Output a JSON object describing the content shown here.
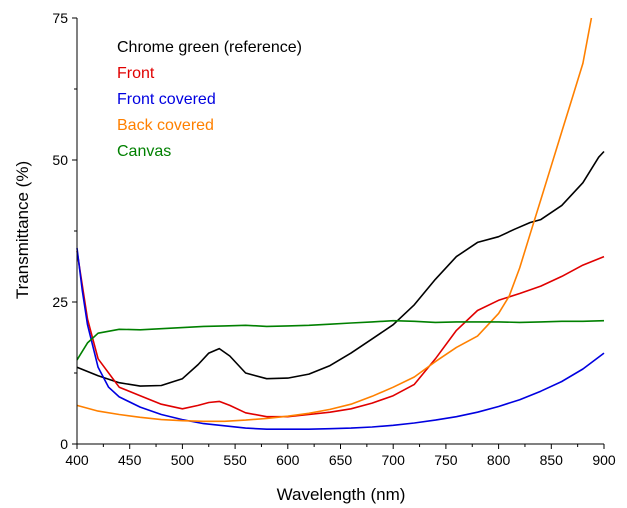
{
  "chart_data": {
    "type": "line",
    "title": "",
    "xlabel": "Wavelength (nm)",
    "ylabel": "Transmittance (%)",
    "xlim": [
      400,
      900
    ],
    "ylim": [
      0,
      75
    ],
    "xticks": [
      400,
      450,
      500,
      550,
      600,
      650,
      700,
      750,
      800,
      850,
      900
    ],
    "yticks": [
      0,
      25,
      50,
      75
    ],
    "grid": false,
    "legend_position": "top-left",
    "series": [
      {
        "name": "Chrome green (reference)",
        "color": "#000000",
        "x": [
          400,
          420,
          440,
          460,
          480,
          500,
          515,
          525,
          535,
          545,
          560,
          580,
          600,
          620,
          640,
          660,
          680,
          700,
          720,
          740,
          760,
          780,
          800,
          815,
          830,
          840,
          860,
          880,
          895,
          900
        ],
        "y": [
          13.5,
          12,
          10.8,
          10.2,
          10.3,
          11.5,
          14,
          16,
          16.8,
          15.5,
          12.5,
          11.5,
          11.6,
          12.3,
          13.8,
          16,
          18.5,
          21,
          24.5,
          29,
          33,
          35.5,
          36.5,
          37.8,
          39,
          39.5,
          42,
          46,
          50.5,
          51.5
        ]
      },
      {
        "name": "Front",
        "color": "#e00000",
        "x": [
          400,
          410,
          420,
          440,
          460,
          480,
          500,
          515,
          525,
          535,
          545,
          560,
          580,
          600,
          620,
          640,
          660,
          680,
          700,
          720,
          740,
          760,
          780,
          800,
          820,
          840,
          860,
          880,
          900
        ],
        "y": [
          34,
          22,
          15,
          10,
          8.5,
          7,
          6.2,
          6.8,
          7.3,
          7.5,
          6.8,
          5.5,
          4.8,
          4.8,
          5.2,
          5.6,
          6.2,
          7.2,
          8.5,
          10.5,
          15,
          20,
          23.5,
          25.3,
          26.5,
          27.8,
          29.5,
          31.5,
          33
        ]
      },
      {
        "name": "Front covered",
        "color": "#0000e0",
        "x": [
          400,
          405,
          410,
          420,
          430,
          440,
          460,
          480,
          500,
          520,
          540,
          560,
          580,
          600,
          620,
          640,
          660,
          680,
          700,
          720,
          740,
          760,
          780,
          800,
          820,
          840,
          860,
          880,
          900
        ],
        "y": [
          34.5,
          27,
          21,
          13.5,
          10,
          8.3,
          6.5,
          5.2,
          4.3,
          3.6,
          3.2,
          2.8,
          2.6,
          2.6,
          2.6,
          2.7,
          2.8,
          3,
          3.3,
          3.7,
          4.2,
          4.8,
          5.6,
          6.6,
          7.8,
          9.3,
          11,
          13.2,
          16
        ]
      },
      {
        "name": "Back covered",
        "color": "#ff8000",
        "x": [
          400,
          420,
          440,
          460,
          480,
          500,
          520,
          540,
          560,
          580,
          600,
          620,
          640,
          660,
          680,
          700,
          720,
          740,
          760,
          780,
          800,
          810,
          820,
          830,
          840,
          850,
          860,
          870,
          880,
          888
        ],
        "y": [
          6.8,
          5.8,
          5.2,
          4.7,
          4.3,
          4.1,
          4,
          4,
          4.2,
          4.5,
          4.9,
          5.4,
          6.1,
          7,
          8.4,
          10,
          11.8,
          14.5,
          17,
          19,
          23,
          26,
          31,
          37,
          43,
          49,
          55,
          61,
          67,
          75
        ]
      },
      {
        "name": "Canvas",
        "color": "#008000",
        "x": [
          400,
          410,
          420,
          440,
          460,
          480,
          500,
          520,
          540,
          560,
          580,
          600,
          620,
          640,
          660,
          680,
          700,
          720,
          740,
          760,
          780,
          800,
          820,
          840,
          860,
          880,
          900
        ],
        "y": [
          14.8,
          17.8,
          19.5,
          20.2,
          20.1,
          20.3,
          20.5,
          20.7,
          20.8,
          20.9,
          20.7,
          20.8,
          20.9,
          21.1,
          21.3,
          21.5,
          21.7,
          21.6,
          21.4,
          21.5,
          21.5,
          21.5,
          21.4,
          21.5,
          21.6,
          21.6,
          21.7
        ]
      }
    ]
  }
}
